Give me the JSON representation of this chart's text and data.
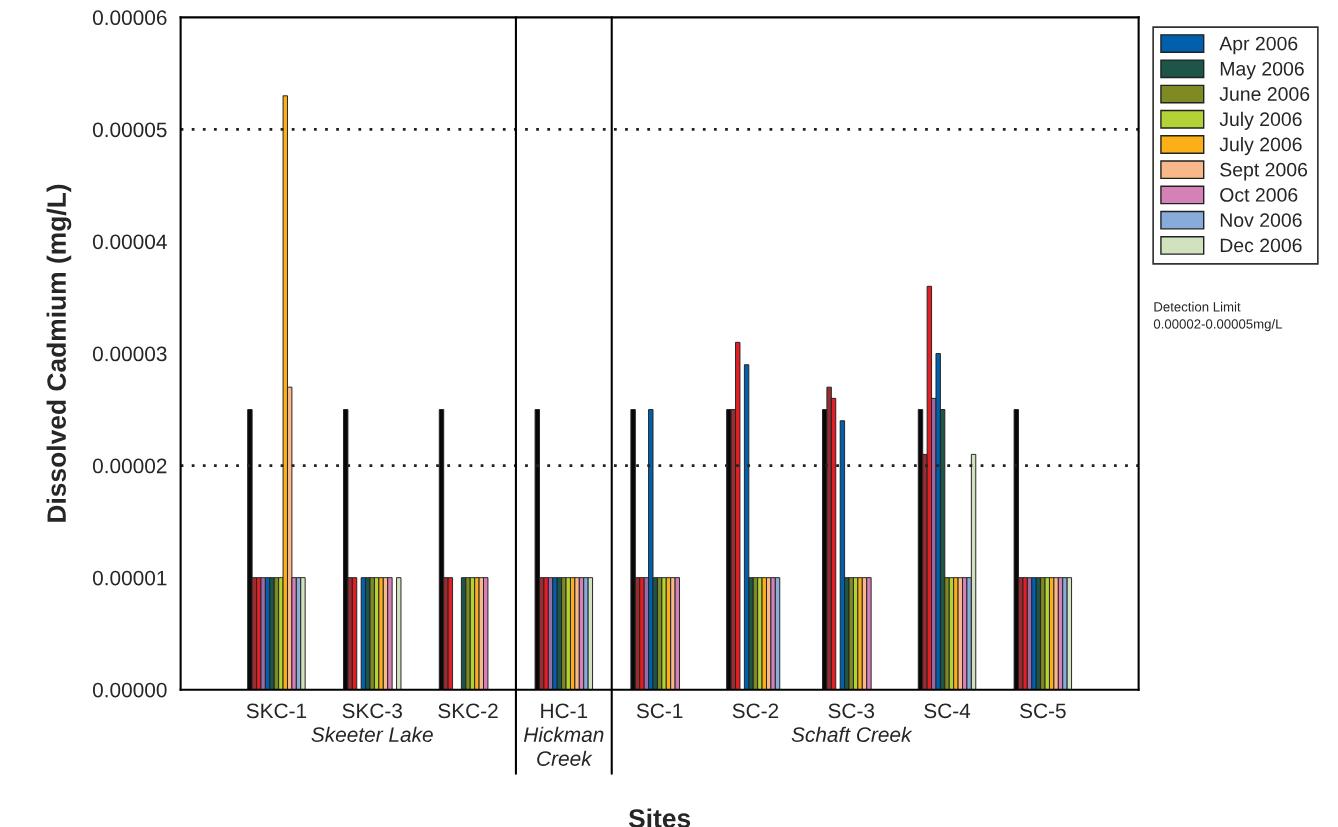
{
  "chart_data": {
    "type": "bar",
    "xlabel": "Sites",
    "ylabel": "Dissolved Cadmium (mg/L)",
    "categories": [
      "SKC-1",
      "SKC-3",
      "SKC-2",
      "HC-1",
      "SC-1",
      "SC-2",
      "SC-3",
      "SC-4",
      "SC-5"
    ],
    "series": [
      {
        "color": "#080808",
        "values": [
          2.5e-05,
          2.5e-05,
          2.5e-05,
          2.5e-05,
          2.5e-05,
          2.5e-05,
          2.5e-05,
          2.5e-05,
          2.5e-05
        ]
      },
      {
        "color": "#9b2d30",
        "values": [
          1e-05,
          1e-05,
          1e-05,
          1e-05,
          1e-05,
          2.5e-05,
          2.7e-05,
          2.1e-05,
          1e-05
        ]
      },
      {
        "color": "#e31e24",
        "values": [
          1e-05,
          1e-05,
          1e-05,
          1e-05,
          1e-05,
          3.1e-05,
          2.6e-05,
          3.6e-05,
          1e-05
        ]
      },
      {
        "color": "#9b6aa8",
        "values": [
          1e-05,
          null,
          null,
          1e-05,
          1e-05,
          null,
          null,
          2.6e-05,
          1e-05
        ]
      },
      {
        "name": "Apr 2006",
        "color": "#0060ad",
        "values": [
          1e-05,
          1e-05,
          null,
          1e-05,
          2.5e-05,
          2.9e-05,
          2.4e-05,
          3e-05,
          1e-05
        ]
      },
      {
        "name": "May 2006",
        "color": "#1e5549",
        "values": [
          1e-05,
          1e-05,
          1e-05,
          1e-05,
          1e-05,
          1e-05,
          1e-05,
          2.5e-05,
          1e-05
        ]
      },
      {
        "name": "June 2006",
        "color": "#7f8a23",
        "values": [
          1e-05,
          1e-05,
          1e-05,
          1e-05,
          1e-05,
          1e-05,
          1e-05,
          1e-05,
          1e-05
        ]
      },
      {
        "name": "July 2006",
        "color": "#b2d235",
        "values": [
          1e-05,
          1e-05,
          1e-05,
          1e-05,
          1e-05,
          1e-05,
          1e-05,
          1e-05,
          1e-05
        ]
      },
      {
        "name": "July 2006",
        "color": "#fbb01a",
        "values": [
          5.3e-05,
          1e-05,
          1e-05,
          1e-05,
          1e-05,
          1e-05,
          1e-05,
          1e-05,
          1e-05
        ]
      },
      {
        "name": "Sept 2006",
        "color": "#f9b88a",
        "values": [
          2.7e-05,
          1e-05,
          1e-05,
          1e-05,
          1e-05,
          1e-05,
          1e-05,
          1e-05,
          1e-05
        ]
      },
      {
        "name": "Oct 2006",
        "color": "#d580b7",
        "values": [
          1e-05,
          1e-05,
          1e-05,
          1e-05,
          1e-05,
          1e-05,
          1e-05,
          1e-05,
          1e-05
        ]
      },
      {
        "name": "Nov 2006",
        "color": "#88acd9",
        "values": [
          1e-05,
          null,
          null,
          1e-05,
          null,
          1e-05,
          null,
          1e-05,
          1e-05
        ]
      },
      {
        "name": "Dec 2006",
        "color": "#d2e2bf",
        "values": [
          1e-05,
          1e-05,
          null,
          1e-05,
          null,
          null,
          null,
          2.1e-05,
          1e-05
        ]
      }
    ],
    "ylim": [
      0,
      6e-05
    ],
    "yticks": [
      {
        "value": 0,
        "label": "0.00000"
      },
      {
        "value": 1e-05,
        "label": "0.00001"
      },
      {
        "value": 2e-05,
        "label": "0.00002"
      },
      {
        "value": 3e-05,
        "label": "0.00003"
      },
      {
        "value": 4e-05,
        "label": "0.00004"
      },
      {
        "value": 5e-05,
        "label": "0.00005"
      },
      {
        "value": 6e-05,
        "label": "0.00006"
      }
    ],
    "ref_lines": [
      {
        "axis": "y",
        "value": 2e-05,
        "line_style": "dotted"
      },
      {
        "axis": "y",
        "value": 5e-05,
        "line_style": "dotted"
      }
    ],
    "annotations": [
      "Skeeter Lake",
      "Hickman\nCreek",
      "Schaft Creek",
      "Detection Limit\n0.00002-0.00005mg/L"
    ],
    "legend": "top right",
    "grid": false
  }
}
